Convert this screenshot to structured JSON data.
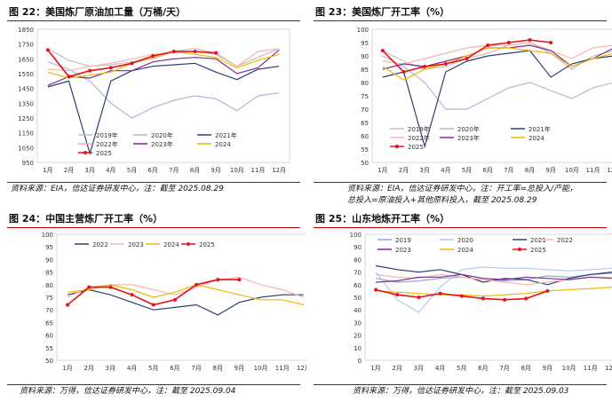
{
  "charts": [
    {
      "title": "图 22：美国炼厂原油加工量（万桶/天）",
      "source": "资料来源：EIA，信达证券研发中心，注：截至 2025.08.29",
      "chart_data": {
        "type": "line",
        "x_tick_labels": [
          "1月",
          "2月",
          "3月",
          "4月",
          "5月",
          "6月",
          "7月",
          "8月",
          "9月",
          "10月",
          "11月",
          "12月"
        ],
        "ylim": [
          950,
          1850
        ],
        "y_ticks": [
          950,
          1050,
          1150,
          1250,
          1350,
          1450,
          1550,
          1650,
          1750,
          1850
        ],
        "xlabel": "",
        "ylabel": "万桶/天",
        "legend": "inside-bottom",
        "series": [
          {
            "name": "2019年",
            "color": "#c0c0c0",
            "values": [
              1720,
              1640,
              1600,
              1610,
              1630,
              1650,
              1700,
              1720,
              1690,
              1600,
              1660,
              1720
            ]
          },
          {
            "name": "2020年",
            "color": "#aeb8d6",
            "values": [
              1630,
              1580,
              1500,
              1350,
              1250,
              1320,
              1370,
              1400,
              1380,
              1300,
              1400,
              1420
            ]
          },
          {
            "name": "2021年",
            "color": "#2e3f6e",
            "values": [
              1460,
              1500,
              1010,
              1500,
              1570,
              1600,
              1610,
              1620,
              1560,
              1510,
              1580,
              1600
            ]
          },
          {
            "name": "2022年",
            "color": "#f4b6b0",
            "values": [
              1580,
              1570,
              1600,
              1620,
              1650,
              1680,
              1690,
              1700,
              1680,
              1600,
              1700,
              1720
            ]
          },
          {
            "name": "2023年",
            "color": "#7b2f8f",
            "values": [
              1470,
              1530,
              1520,
              1570,
              1570,
              1630,
              1650,
              1660,
              1650,
              1550,
              1590,
              1710
            ]
          },
          {
            "name": "2024",
            "color": "#f2b705",
            "values": [
              1560,
              1520,
              1540,
              1560,
              1620,
              1660,
              1700,
              1680,
              1660,
              1590,
              1640,
              1680
            ]
          },
          {
            "name": "2025",
            "color": "#e8101a",
            "marker": true,
            "values": [
              1710,
              1530,
              1570,
              1590,
              1620,
              1670,
              1700,
              1700,
              1690,
              null,
              null,
              null
            ]
          }
        ]
      }
    },
    {
      "title": "图 23：美国炼厂开工率（%）",
      "source": "资料来源：EIA，信达证券研发中心，注：开工率=总投入/产能，总投入=原油投入+其他原料投入，截至 2025.08.29",
      "source_lines": [
        "资料来源：EIA，信达证券研发中心，注：开工率=总投入/产能，",
        "总投入=原油投入+其他原料投入，截至 2025.08.29"
      ],
      "chart_data": {
        "type": "line",
        "x_tick_labels": [
          "1月",
          "2月",
          "3月",
          "4月",
          "5月",
          "6月",
          "7月",
          "8月",
          "9月",
          "10月",
          "11月",
          "12月"
        ],
        "ylim": [
          50,
          100
        ],
        "y_ticks": [
          50,
          55,
          60,
          65,
          70,
          75,
          80,
          85,
          90,
          95,
          100
        ],
        "xlabel": "",
        "ylabel": "%",
        "legend": "inside-bottom",
        "series": [
          {
            "name": "2019年",
            "color": "#c0c0c0",
            "values": [
              92,
              88,
              85,
              86,
              89,
              91,
              94,
              95,
              91,
              85,
              90,
              92
            ]
          },
          {
            "name": "2020年",
            "color": "#aeb8d6",
            "values": [
              90,
              86,
              80,
              70,
              70,
              74,
              78,
              80,
              77,
              74,
              78,
              80
            ]
          },
          {
            "name": "2021年",
            "color": "#2e3f6e",
            "values": [
              82,
              84,
              56,
              84,
              88,
              90,
              91,
              92,
              82,
              87,
              89,
              90
            ]
          },
          {
            "name": "2022年",
            "color": "#f4b6b0",
            "values": [
              88,
              87,
              89,
              91,
              93,
              94,
              94,
              95,
              92,
              89,
              93,
              94
            ]
          },
          {
            "name": "2023年",
            "color": "#7b2f8f",
            "values": [
              85,
              87,
              86,
              88,
              90,
              93,
              93,
              94,
              92,
              86,
              89,
              93
            ]
          },
          {
            "name": "2024",
            "color": "#f2b705",
            "values": [
              86,
              81,
              85,
              87,
              90,
              93,
              93,
              92,
              91,
              86,
              89,
              91
            ]
          },
          {
            "name": "2025",
            "color": "#e8101a",
            "marker": true,
            "values": [
              92,
              84,
              86,
              87,
              89,
              94,
              95,
              96,
              95,
              null,
              null,
              null
            ]
          }
        ]
      }
    },
    {
      "title": "图 24：中国主营炼厂开工率（%）",
      "source": "资料来源：万得，信达证券研发中心，注：截至 2025.09.04",
      "chart_data": {
        "type": "line",
        "x_tick_labels": [
          "1月",
          "2月",
          "3月",
          "4月",
          "5月",
          "6月",
          "7月",
          "8月",
          "9月",
          "10月",
          "11月",
          "12月"
        ],
        "ylim": [
          50,
          100
        ],
        "y_ticks": [
          50,
          55,
          60,
          65,
          70,
          75,
          80,
          85,
          90,
          95,
          100
        ],
        "xlabel": "",
        "ylabel": "%",
        "legend": "inside-top",
        "series": [
          {
            "name": "2022",
            "color": "#2e3f6e",
            "values": [
              76,
              78,
              76,
              73,
              70,
              71,
              72,
              68,
              73,
              75,
              76,
              76
            ]
          },
          {
            "name": "2023",
            "color": "#f4b6b0",
            "values": [
              75,
              79,
              80,
              80,
              78,
              76,
              79,
              82,
              83,
              80,
              78,
              75
            ]
          },
          {
            "name": "2024",
            "color": "#f2b705",
            "values": [
              77,
              78,
              80,
              78,
              75,
              77,
              80,
              78,
              76,
              74,
              74,
              72
            ]
          },
          {
            "name": "2025",
            "color": "#e8101a",
            "marker": true,
            "values": [
              72,
              79,
              79,
              76,
              72,
              74,
              80,
              82,
              82,
              null,
              null,
              null
            ]
          }
        ]
      }
    },
    {
      "title": "图 25：山东地炼开工率（%）",
      "source": "资料来源：万得，信达证券研发中心，注：截至 2025.09.03",
      "chart_data": {
        "type": "line",
        "x_tick_labels": [
          "1月",
          "2月",
          "3月",
          "4月",
          "5月",
          "6月",
          "7月",
          "8月",
          "9月",
          "10月",
          "11月",
          "12月"
        ],
        "ylim": [
          0,
          100
        ],
        "y_ticks": [
          0,
          10,
          20,
          30,
          40,
          50,
          60,
          70,
          80,
          90,
          100
        ],
        "xlabel": "",
        "ylabel": "%",
        "legend": "inside-top",
        "series": [
          {
            "name": "2019",
            "color": "#8ea9d8",
            "values": [
              65,
              62,
              63,
              65,
              66,
              64,
              63,
              64,
              67,
              66,
              68,
              69
            ]
          },
          {
            "name": "2020",
            "color": "#b7c9e8",
            "values": [
              70,
              48,
              38,
              58,
              72,
              74,
              73,
              73,
              72,
              71,
              72,
              73
            ]
          },
          {
            "name": "2021",
            "color": "#2e3f6e",
            "values": [
              75,
              72,
              70,
              72,
              68,
              62,
              65,
              64,
              60,
              65,
              68,
              70
            ]
          },
          {
            "name": "2022",
            "color": "#f4b6b0",
            "values": [
              68,
              66,
              65,
              68,
              66,
              64,
              62,
              60,
              62,
              64,
              66,
              66
            ]
          },
          {
            "name": "2023",
            "color": "#7b2f8f",
            "values": [
              62,
              63,
              66,
              66,
              68,
              65,
              64,
              66,
              65,
              64,
              66,
              65
            ]
          },
          {
            "name": "2024",
            "color": "#f2b705",
            "values": [
              55,
              54,
              53,
              52,
              52,
              51,
              52,
              53,
              55,
              56,
              57,
              58
            ]
          },
          {
            "name": "2025",
            "color": "#e8101a",
            "marker": true,
            "values": [
              56,
              52,
              50,
              53,
              51,
              49,
              48,
              49,
              55,
              null,
              null,
              null
            ]
          }
        ]
      }
    }
  ]
}
